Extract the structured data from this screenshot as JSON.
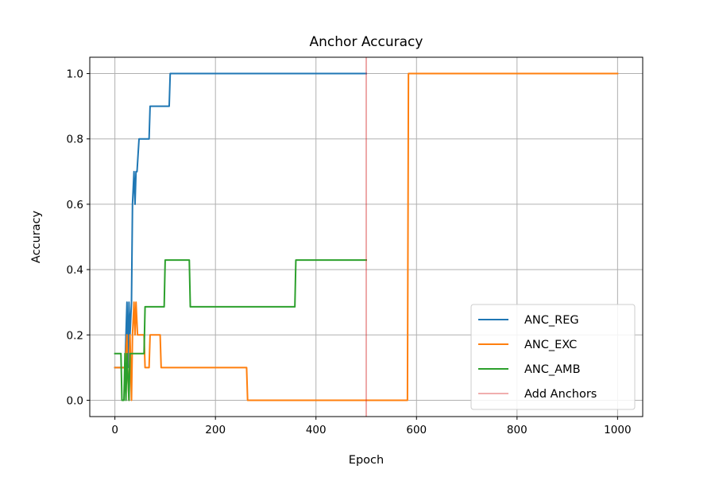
{
  "chart_data": {
    "type": "line",
    "title": "Anchor Accuracy",
    "xlabel": "Epoch",
    "ylabel": "Accuracy",
    "xlim": [
      -50,
      1050
    ],
    "ylim": [
      -0.05,
      1.05
    ],
    "xticks": [
      0,
      200,
      400,
      600,
      800,
      1000
    ],
    "xtick_labels": [
      "0",
      "200",
      "400",
      "600",
      "800",
      "1000"
    ],
    "yticks": [
      0.0,
      0.2,
      0.4,
      0.6,
      0.8,
      1.0
    ],
    "ytick_labels": [
      "0.0",
      "0.2",
      "0.4",
      "0.6",
      "0.8",
      "1.0"
    ],
    "grid": true,
    "legend_position": "lower-right",
    "series": [
      {
        "name": "ANC_REG",
        "color": "#1f77b4",
        "x": [
          0,
          20,
          24,
          26,
          28,
          30,
          33,
          35,
          38,
          40,
          42,
          44,
          48,
          50,
          68,
          70,
          108,
          110,
          500
        ],
        "y": [
          0.1,
          0.1,
          0.3,
          0.1,
          0.3,
          0.2,
          0.3,
          0.6,
          0.7,
          0.6,
          0.7,
          0.7,
          0.8,
          0.8,
          0.8,
          0.9,
          0.9,
          1.0,
          1.0
        ]
      },
      {
        "name": "ANC_EXC",
        "color": "#ff7f0e",
        "x": [
          0,
          16,
          20,
          24,
          25,
          28,
          30,
          33,
          35,
          38,
          40,
          42,
          45,
          58,
          60,
          68,
          70,
          88,
          90,
          92,
          262,
          264,
          582,
          584,
          1000
        ],
        "y": [
          0.1,
          0.1,
          0.1,
          0.2,
          0.1,
          0.0,
          0.2,
          0.0,
          0.2,
          0.3,
          0.2,
          0.3,
          0.2,
          0.2,
          0.1,
          0.1,
          0.2,
          0.2,
          0.2,
          0.1,
          0.1,
          0.0,
          0.0,
          1.0,
          1.0
        ]
      },
      {
        "name": "ANC_AMB",
        "color": "#2ca02c",
        "x": [
          0,
          12,
          14,
          18,
          20,
          22,
          24,
          28,
          30,
          35,
          38,
          58,
          60,
          98,
          100,
          148,
          150,
          358,
          360,
          500
        ],
        "y": [
          0.143,
          0.143,
          0.0,
          0.0,
          0.143,
          0.0,
          0.143,
          0.0,
          0.143,
          0.143,
          0.143,
          0.143,
          0.286,
          0.286,
          0.429,
          0.429,
          0.286,
          0.286,
          0.429,
          0.429
        ]
      }
    ],
    "vlines": [
      {
        "name": "Add Anchors",
        "x": 500,
        "color": "#d62728"
      }
    ]
  }
}
